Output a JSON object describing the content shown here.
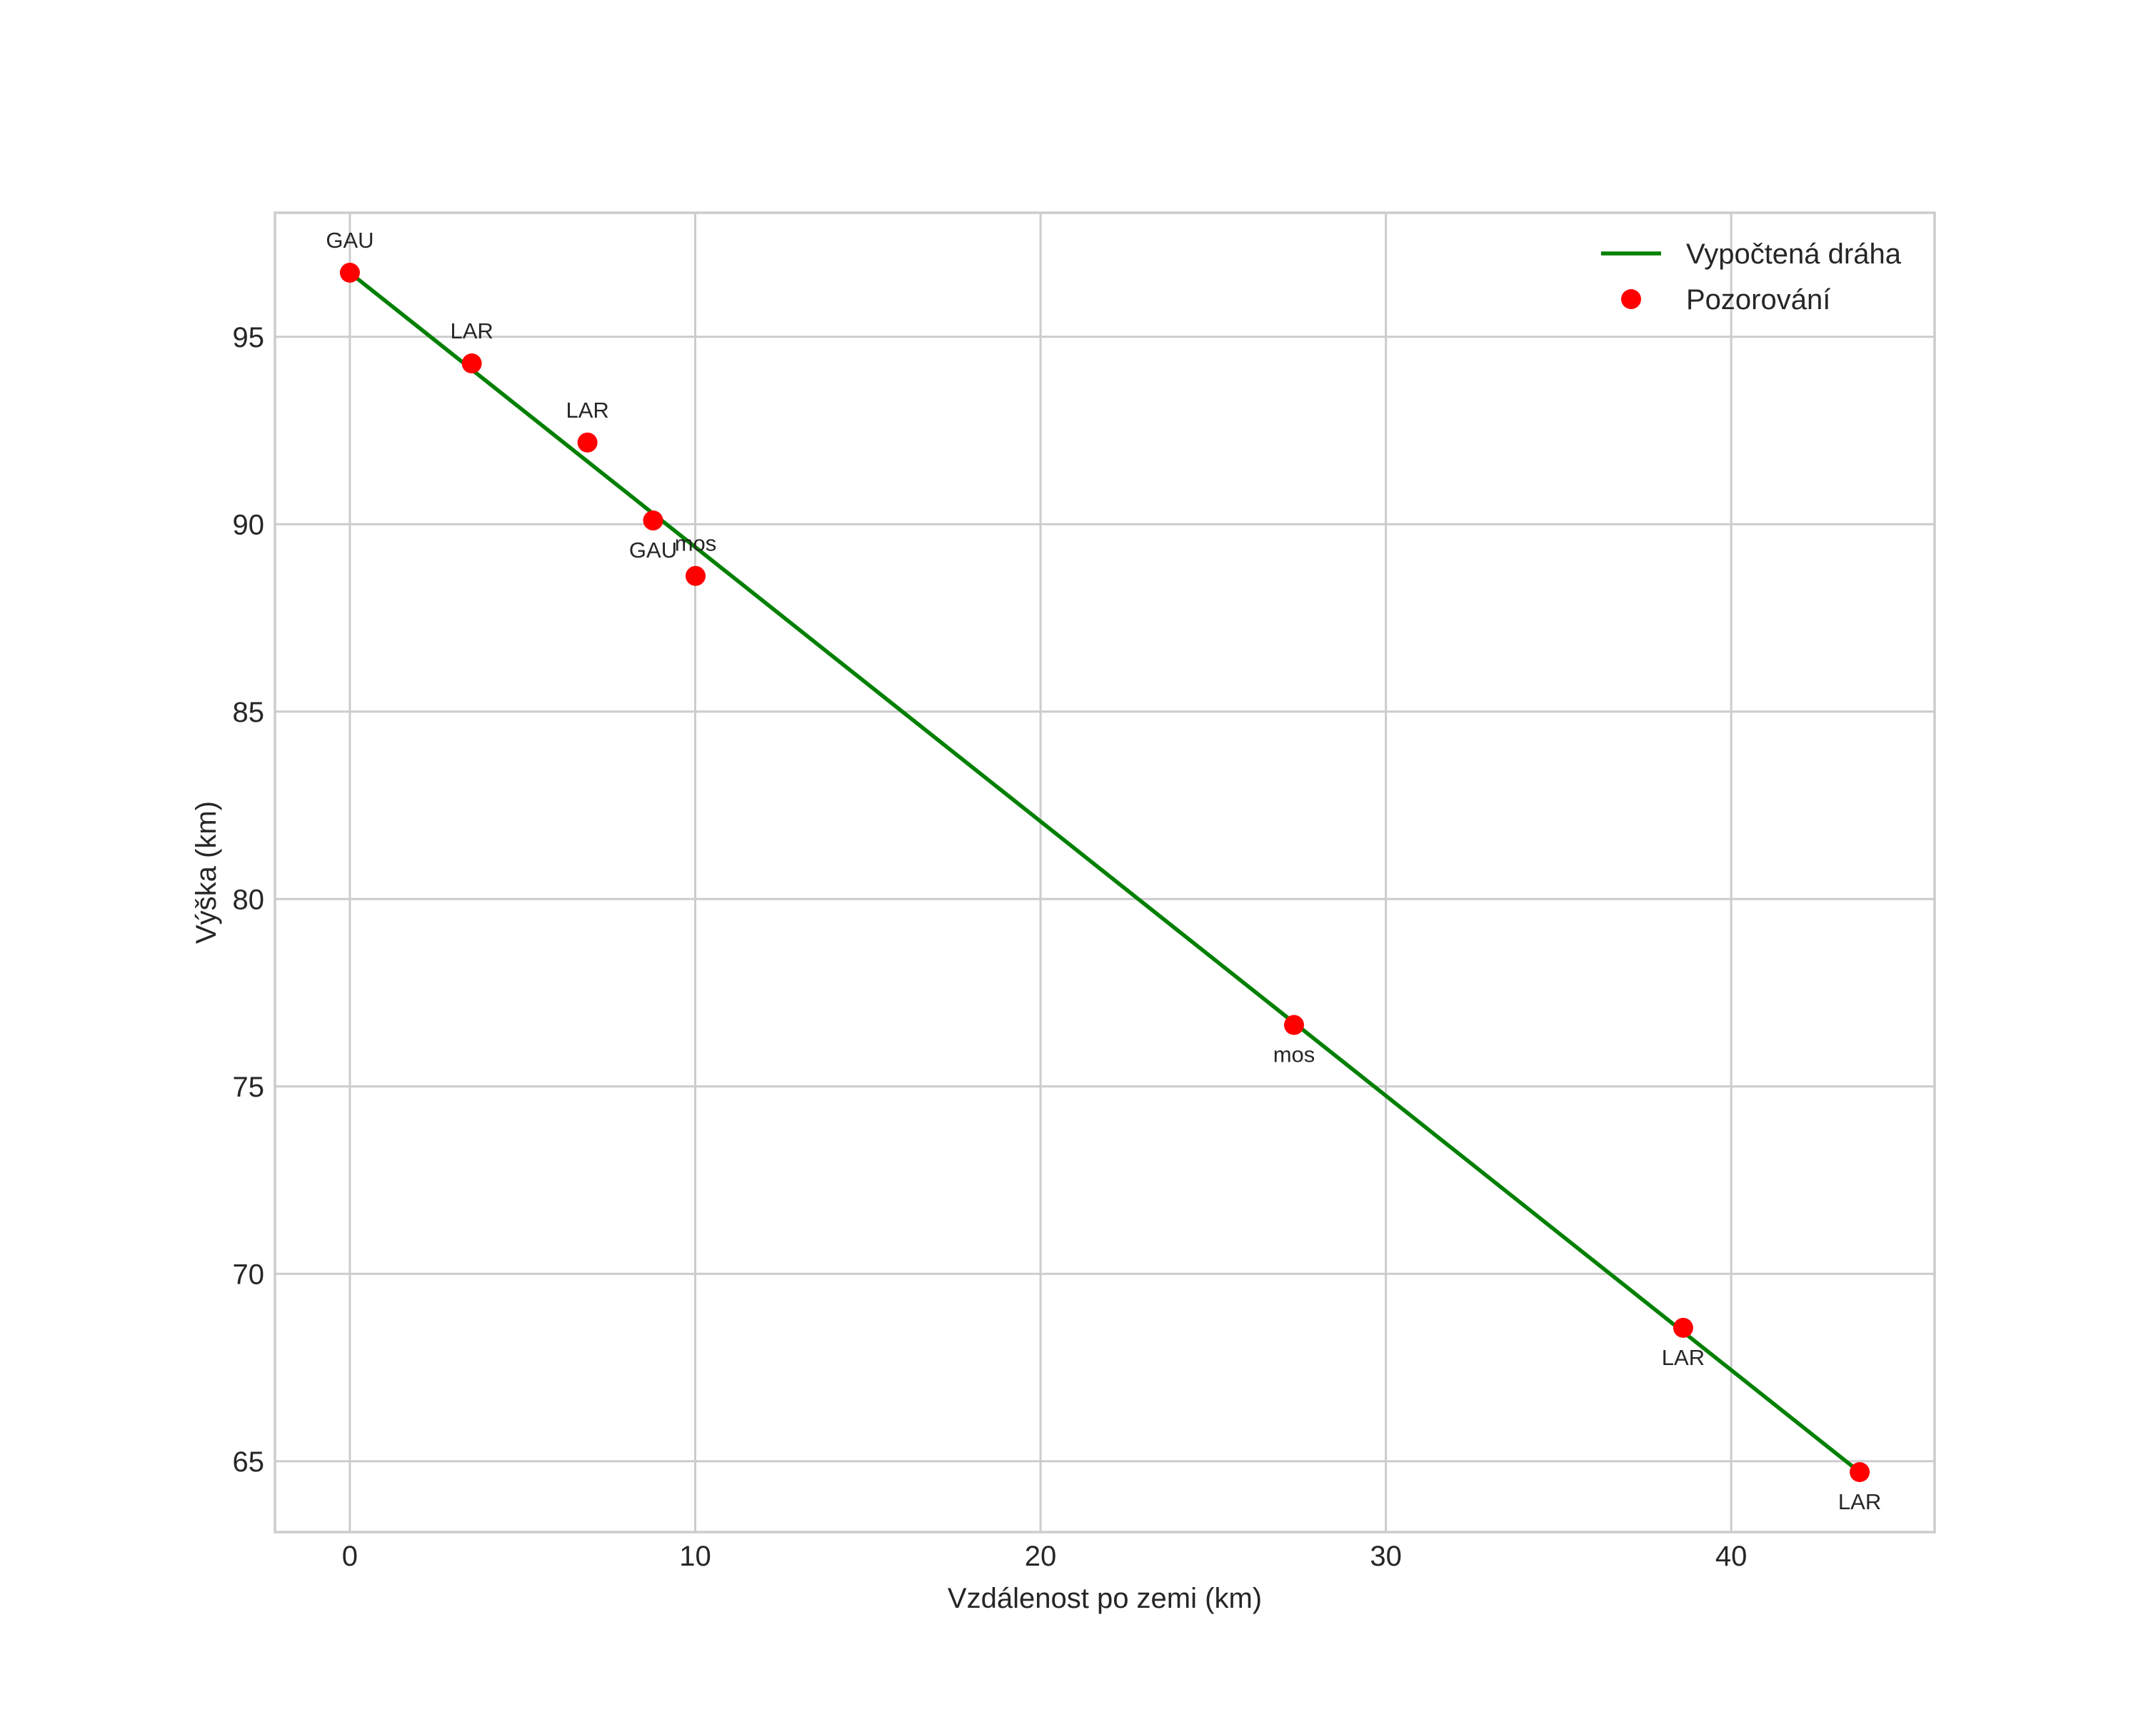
{
  "chart_data": {
    "type": "line",
    "title": "",
    "xlabel": "Vzdálenost po zemi (km)",
    "ylabel": "Výška (km)",
    "xlim": [
      -2.17,
      45.89
    ],
    "ylim": [
      63.11,
      98.31
    ],
    "xticks": [
      0,
      10,
      20,
      30,
      40
    ],
    "yticks": [
      65,
      70,
      75,
      80,
      85,
      90,
      95
    ],
    "grid": true,
    "legend_position": "upper right",
    "series": [
      {
        "name": "Vypočtená dráha",
        "type": "line",
        "color": "#008000",
        "x": [
          0.0,
          43.72
        ],
        "y": [
          96.71,
          64.71
        ]
      },
      {
        "name": "Pozorování",
        "type": "scatter",
        "color": "#ff0000",
        "points": [
          {
            "x": 0.0,
            "y": 96.71,
            "label": "GAU",
            "label_pos": "above"
          },
          {
            "x": 3.53,
            "y": 94.29,
            "label": "LAR",
            "label_pos": "above"
          },
          {
            "x": 6.88,
            "y": 92.18,
            "label": "LAR",
            "label_pos": "above"
          },
          {
            "x": 8.78,
            "y": 90.1,
            "label": "GAU",
            "label_pos": "below"
          },
          {
            "x": 10.01,
            "y": 88.62,
            "label": "mos",
            "label_pos": "above"
          },
          {
            "x": 27.34,
            "y": 76.64,
            "label": "mos",
            "label_pos": "below"
          },
          {
            "x": 38.61,
            "y": 68.56,
            "label": "LAR",
            "label_pos": "below"
          },
          {
            "x": 43.72,
            "y": 64.71,
            "label": "LAR",
            "label_pos": "below"
          }
        ]
      }
    ]
  },
  "legend": {
    "items": [
      {
        "label": "Vypočtená dráha",
        "kind": "line",
        "color": "#008000"
      },
      {
        "label": "Pozorování",
        "kind": "marker",
        "color": "#ff0000"
      }
    ]
  },
  "style": {
    "grid_color": "#cccccc",
    "frame_color": "#cccccc",
    "text_color": "#262626"
  }
}
